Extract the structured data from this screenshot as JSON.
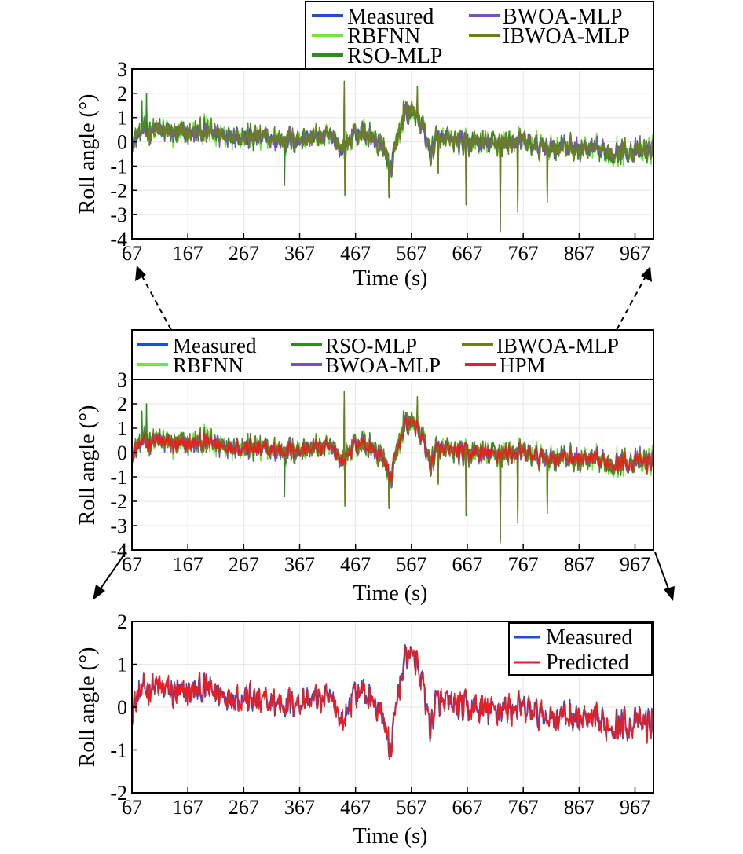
{
  "colors": {
    "Measured": "#1f4fd6",
    "RBFNN": "#6ee63a",
    "RSO-MLP": "#2e8b1f",
    "BWOA-MLP": "#7a4fbf",
    "IBWOA-MLP": "#6b7f1f",
    "HPM": "#ee1c1c",
    "Predicted": "#ee1c1c"
  },
  "chart_data": [
    {
      "id": "top",
      "type": "line",
      "title": "",
      "xlabel": "Time (s)",
      "ylabel": "Roll angle (°)",
      "xlim": [
        67,
        1000
      ],
      "ylim": [
        -4,
        3
      ],
      "xticks": [
        67,
        167,
        267,
        367,
        467,
        567,
        667,
        767,
        867,
        967
      ],
      "yticks": [
        -4,
        -3,
        -2,
        -1,
        0,
        1,
        2,
        3
      ],
      "grid": true,
      "legend_position": "above",
      "legend": [
        "Measured",
        "RBFNN",
        "RSO-MLP",
        "BWOA-MLP",
        "IBWOA-MLP"
      ],
      "series": [
        {
          "name": "Measured"
        },
        {
          "name": "RBFNN"
        },
        {
          "name": "RSO-MLP"
        },
        {
          "name": "BWOA-MLP"
        },
        {
          "name": "IBWOA-MLP"
        }
      ]
    },
    {
      "id": "middle",
      "type": "line",
      "title": "",
      "xlabel": "Time (s)",
      "ylabel": "Roll angle (°)",
      "xlim": [
        67,
        1000
      ],
      "ylim": [
        -4,
        3
      ],
      "xticks": [
        67,
        167,
        267,
        367,
        467,
        567,
        667,
        767,
        867,
        967
      ],
      "yticks": [
        -4,
        -3,
        -2,
        -1,
        0,
        1,
        2,
        3
      ],
      "grid": true,
      "legend_position": "above",
      "legend": [
        "Measured",
        "RSO-MLP",
        "IBWOA-MLP",
        "RBFNN",
        "BWOA-MLP",
        "HPM"
      ],
      "series": [
        {
          "name": "Measured"
        },
        {
          "name": "RBFNN"
        },
        {
          "name": "RSO-MLP"
        },
        {
          "name": "BWOA-MLP"
        },
        {
          "name": "IBWOA-MLP"
        },
        {
          "name": "HPM"
        }
      ]
    },
    {
      "id": "bottom",
      "type": "line",
      "title": "",
      "xlabel": "Time (s)",
      "ylabel": "Roll angle (°)",
      "xlim": [
        67,
        1000
      ],
      "ylim": [
        -2,
        2
      ],
      "xticks": [
        67,
        167,
        267,
        367,
        467,
        567,
        667,
        767,
        867,
        967
      ],
      "yticks": [
        -2,
        -1,
        0,
        1,
        2
      ],
      "grid": true,
      "legend_position": "top-right",
      "legend": [
        "Measured",
        "Predicted"
      ],
      "series": [
        {
          "name": "Measured"
        },
        {
          "name": "Predicted"
        }
      ]
    }
  ],
  "signal": {
    "anchors_t": [
      67,
      80,
      100,
      150,
      200,
      250,
      300,
      350,
      400,
      430,
      445,
      460,
      480,
      500,
      520,
      527,
      535,
      545,
      560,
      575,
      590,
      600,
      610,
      650,
      700,
      750,
      800,
      850,
      900,
      950,
      1000
    ],
    "anchors_v": [
      0.0,
      0.3,
      0.5,
      0.3,
      0.4,
      0.3,
      0.1,
      0.1,
      0.2,
      0.1,
      -0.4,
      0.3,
      0.4,
      0.1,
      -0.3,
      -1.2,
      -0.5,
      0.6,
      1.3,
      1.1,
      0.4,
      -0.5,
      0.1,
      0.0,
      -0.1,
      0.0,
      -0.2,
      -0.2,
      -0.4,
      -0.4,
      -0.4
    ],
    "noise_amp": 0.45,
    "spikes": [
      {
        "t": 447,
        "v": 2.5
      },
      {
        "t": 447.5,
        "v": -2.2
      },
      {
        "t": 527,
        "v": -2.3
      },
      {
        "t": 553,
        "v": 1.7
      },
      {
        "t": 578,
        "v": 2.3
      },
      {
        "t": 615,
        "v": -1.3
      },
      {
        "t": 665,
        "v": -2.6
      },
      {
        "t": 726,
        "v": -3.7
      },
      {
        "t": 757,
        "v": -2.9
      },
      {
        "t": 810,
        "v": -2.5
      },
      {
        "t": 340,
        "v": -1.8
      },
      {
        "t": 93,
        "v": 2.0
      },
      {
        "t": 85,
        "v": 1.7
      }
    ]
  }
}
